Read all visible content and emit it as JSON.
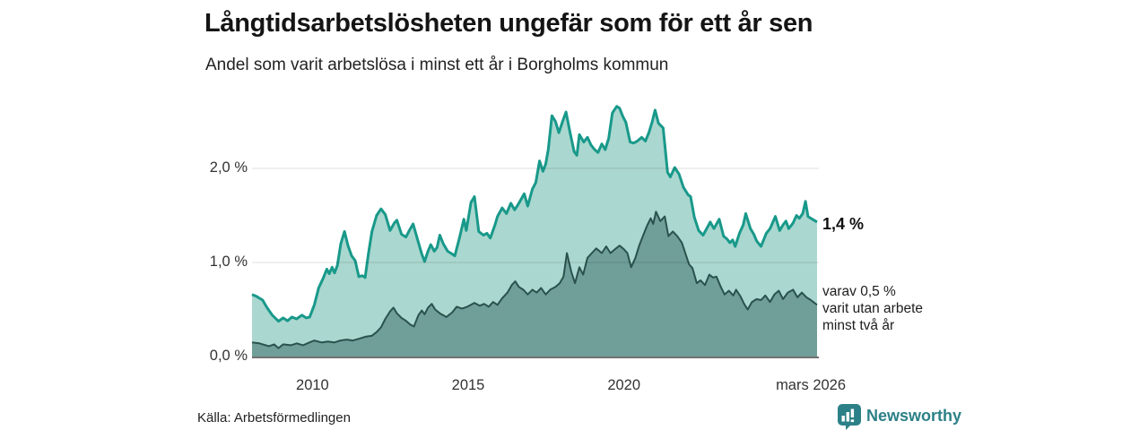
{
  "header": {
    "title": "Långtidsarbetslösheten ungefär som för ett år sen",
    "subtitle": "Andel som varit arbetslösa i minst ett år i Borgholms kommun"
  },
  "colors": {
    "accent_line": "#18998a",
    "accent_fill": "#aad7cf",
    "dark_line": "#2a524d",
    "dark_fill": "#709e99",
    "grid": "rgba(0,0,0,0.10)",
    "axis": "#444444",
    "brand_teal": "#2c8087"
  },
  "chart_data": {
    "type": "area",
    "title": "Långtidsarbetslösheten ungefär som för ett år sen",
    "subtitle": "Andel som varit arbetslösa i minst ett år i Borgholms kommun",
    "x_range": [
      2008.06,
      2026.2
    ],
    "y_range": [
      0,
      2.8
    ],
    "grid": "on",
    "y_ticks": [
      {
        "label": "0,0 %",
        "value": 0
      },
      {
        "label": "1,0 %",
        "value": 1
      },
      {
        "label": "2,0 %",
        "value": 2
      }
    ],
    "x_ticks": [
      {
        "label": "2010",
        "year": 2010
      },
      {
        "label": "2015",
        "year": 2015
      },
      {
        "label": "2020",
        "year": 2020
      },
      {
        "label": "mars 2026",
        "year": 2026.0
      }
    ],
    "series": [
      {
        "name": "Andel arbetslösa minst ett år",
        "latest": "1,4 %",
        "points": [
          [
            2008.06,
            0.66
          ],
          [
            2008.2,
            0.64
          ],
          [
            2008.4,
            0.6
          ],
          [
            2008.54,
            0.52
          ],
          [
            2008.71,
            0.44
          ],
          [
            2008.91,
            0.375
          ],
          [
            2009.06,
            0.41
          ],
          [
            2009.2,
            0.38
          ],
          [
            2009.34,
            0.42
          ],
          [
            2009.49,
            0.4
          ],
          [
            2009.66,
            0.44
          ],
          [
            2009.8,
            0.41
          ],
          [
            2009.91,
            0.42
          ],
          [
            2010.06,
            0.55
          ],
          [
            2010.2,
            0.73
          ],
          [
            2010.34,
            0.83
          ],
          [
            2010.46,
            0.93
          ],
          [
            2010.54,
            0.88
          ],
          [
            2010.63,
            0.95
          ],
          [
            2010.71,
            0.89
          ],
          [
            2010.8,
            0.97
          ],
          [
            2010.91,
            1.2
          ],
          [
            2011.03,
            1.33
          ],
          [
            2011.14,
            1.18
          ],
          [
            2011.26,
            1.07
          ],
          [
            2011.37,
            1.02
          ],
          [
            2011.49,
            0.85
          ],
          [
            2011.6,
            0.86
          ],
          [
            2011.69,
            0.84
          ],
          [
            2011.8,
            1.1
          ],
          [
            2011.91,
            1.33
          ],
          [
            2012.06,
            1.5
          ],
          [
            2012.2,
            1.57
          ],
          [
            2012.34,
            1.51
          ],
          [
            2012.49,
            1.34
          ],
          [
            2012.63,
            1.42
          ],
          [
            2012.71,
            1.45
          ],
          [
            2012.86,
            1.3
          ],
          [
            2013.0,
            1.27
          ],
          [
            2013.11,
            1.34
          ],
          [
            2013.23,
            1.41
          ],
          [
            2013.37,
            1.25
          ],
          [
            2013.51,
            1.09
          ],
          [
            2013.6,
            1.01
          ],
          [
            2013.71,
            1.12
          ],
          [
            2013.8,
            1.19
          ],
          [
            2013.91,
            1.12
          ],
          [
            2014.0,
            1.16
          ],
          [
            2014.09,
            1.29
          ],
          [
            2014.2,
            1.2
          ],
          [
            2014.34,
            1.12
          ],
          [
            2014.49,
            1.09
          ],
          [
            2014.57,
            1.07
          ],
          [
            2014.71,
            1.25
          ],
          [
            2014.86,
            1.46
          ],
          [
            2014.94,
            1.34
          ],
          [
            2015.09,
            1.64
          ],
          [
            2015.2,
            1.7
          ],
          [
            2015.34,
            1.33
          ],
          [
            2015.49,
            1.29
          ],
          [
            2015.6,
            1.31
          ],
          [
            2015.71,
            1.26
          ],
          [
            2015.86,
            1.4
          ],
          [
            2015.94,
            1.49
          ],
          [
            2016.09,
            1.58
          ],
          [
            2016.23,
            1.52
          ],
          [
            2016.37,
            1.63
          ],
          [
            2016.49,
            1.56
          ],
          [
            2016.57,
            1.6
          ],
          [
            2016.66,
            1.65
          ],
          [
            2016.8,
            1.73
          ],
          [
            2016.91,
            1.6
          ],
          [
            2017.06,
            1.78
          ],
          [
            2017.17,
            1.85
          ],
          [
            2017.29,
            2.08
          ],
          [
            2017.4,
            1.97
          ],
          [
            2017.49,
            2.05
          ],
          [
            2017.57,
            2.2
          ],
          [
            2017.69,
            2.56
          ],
          [
            2017.8,
            2.5
          ],
          [
            2017.91,
            2.38
          ],
          [
            2018.03,
            2.5
          ],
          [
            2018.14,
            2.6
          ],
          [
            2018.26,
            2.4
          ],
          [
            2018.4,
            2.18
          ],
          [
            2018.49,
            2.14
          ],
          [
            2018.57,
            2.36
          ],
          [
            2018.71,
            2.28
          ],
          [
            2018.83,
            2.33
          ],
          [
            2018.94,
            2.25
          ],
          [
            2019.06,
            2.2
          ],
          [
            2019.17,
            2.17
          ],
          [
            2019.29,
            2.26
          ],
          [
            2019.4,
            2.2
          ],
          [
            2019.51,
            2.32
          ],
          [
            2019.63,
            2.59
          ],
          [
            2019.77,
            2.66
          ],
          [
            2019.86,
            2.64
          ],
          [
            2019.97,
            2.55
          ],
          [
            2020.06,
            2.49
          ],
          [
            2020.2,
            2.28
          ],
          [
            2020.31,
            2.27
          ],
          [
            2020.43,
            2.29
          ],
          [
            2020.57,
            2.33
          ],
          [
            2020.69,
            2.29
          ],
          [
            2020.8,
            2.38
          ],
          [
            2020.91,
            2.5
          ],
          [
            2021.0,
            2.62
          ],
          [
            2021.11,
            2.48
          ],
          [
            2021.26,
            2.43
          ],
          [
            2021.4,
            1.96
          ],
          [
            2021.49,
            1.91
          ],
          [
            2021.63,
            2.01
          ],
          [
            2021.77,
            1.94
          ],
          [
            2021.91,
            1.8
          ],
          [
            2022.06,
            1.72
          ],
          [
            2022.14,
            1.7
          ],
          [
            2022.26,
            1.48
          ],
          [
            2022.4,
            1.34
          ],
          [
            2022.54,
            1.29
          ],
          [
            2022.69,
            1.38
          ],
          [
            2022.77,
            1.43
          ],
          [
            2022.89,
            1.36
          ],
          [
            2023.06,
            1.46
          ],
          [
            2023.2,
            1.28
          ],
          [
            2023.31,
            1.25
          ],
          [
            2023.4,
            1.21
          ],
          [
            2023.49,
            1.24
          ],
          [
            2023.57,
            1.17
          ],
          [
            2023.71,
            1.31
          ],
          [
            2023.83,
            1.4
          ],
          [
            2023.91,
            1.52
          ],
          [
            2024.06,
            1.36
          ],
          [
            2024.17,
            1.3
          ],
          [
            2024.26,
            1.23
          ],
          [
            2024.4,
            1.17
          ],
          [
            2024.57,
            1.31
          ],
          [
            2024.69,
            1.36
          ],
          [
            2024.86,
            1.49
          ],
          [
            2025.0,
            1.34
          ],
          [
            2025.11,
            1.4
          ],
          [
            2025.2,
            1.44
          ],
          [
            2025.29,
            1.36
          ],
          [
            2025.43,
            1.42
          ],
          [
            2025.54,
            1.5
          ],
          [
            2025.63,
            1.47
          ],
          [
            2025.74,
            1.52
          ],
          [
            2025.83,
            1.65
          ],
          [
            2025.91,
            1.49
          ],
          [
            2026.0,
            1.47
          ],
          [
            2026.2,
            1.43
          ]
        ]
      },
      {
        "name": "varav utan arbete minst två år",
        "latest": "0,5 %",
        "points": [
          [
            2008.06,
            0.15
          ],
          [
            2008.3,
            0.14
          ],
          [
            2008.6,
            0.11
          ],
          [
            2008.77,
            0.13
          ],
          [
            2008.91,
            0.09
          ],
          [
            2009.06,
            0.13
          ],
          [
            2009.3,
            0.12
          ],
          [
            2009.5,
            0.14
          ],
          [
            2009.7,
            0.12
          ],
          [
            2009.9,
            0.15
          ],
          [
            2010.06,
            0.17
          ],
          [
            2010.3,
            0.15
          ],
          [
            2010.5,
            0.16
          ],
          [
            2010.7,
            0.15
          ],
          [
            2010.9,
            0.17
          ],
          [
            2011.1,
            0.18
          ],
          [
            2011.3,
            0.17
          ],
          [
            2011.5,
            0.19
          ],
          [
            2011.7,
            0.21
          ],
          [
            2011.9,
            0.22
          ],
          [
            2012.06,
            0.26
          ],
          [
            2012.2,
            0.31
          ],
          [
            2012.34,
            0.4
          ],
          [
            2012.49,
            0.48
          ],
          [
            2012.6,
            0.52
          ],
          [
            2012.71,
            0.46
          ],
          [
            2012.86,
            0.41
          ],
          [
            2013.0,
            0.38
          ],
          [
            2013.14,
            0.34
          ],
          [
            2013.26,
            0.32
          ],
          [
            2013.4,
            0.44
          ],
          [
            2013.51,
            0.49
          ],
          [
            2013.6,
            0.45
          ],
          [
            2013.71,
            0.52
          ],
          [
            2013.83,
            0.56
          ],
          [
            2013.94,
            0.5
          ],
          [
            2014.09,
            0.46
          ],
          [
            2014.3,
            0.42
          ],
          [
            2014.49,
            0.47
          ],
          [
            2014.63,
            0.53
          ],
          [
            2014.8,
            0.51
          ],
          [
            2014.97,
            0.53
          ],
          [
            2015.2,
            0.57
          ],
          [
            2015.37,
            0.54
          ],
          [
            2015.51,
            0.56
          ],
          [
            2015.66,
            0.53
          ],
          [
            2015.8,
            0.58
          ],
          [
            2015.94,
            0.55
          ],
          [
            2016.09,
            0.62
          ],
          [
            2016.26,
            0.68
          ],
          [
            2016.4,
            0.76
          ],
          [
            2016.51,
            0.8
          ],
          [
            2016.63,
            0.74
          ],
          [
            2016.77,
            0.71
          ],
          [
            2016.91,
            0.66
          ],
          [
            2017.06,
            0.71
          ],
          [
            2017.2,
            0.68
          ],
          [
            2017.34,
            0.73
          ],
          [
            2017.49,
            0.66
          ],
          [
            2017.63,
            0.71
          ],
          [
            2017.8,
            0.74
          ],
          [
            2017.94,
            0.78
          ],
          [
            2018.06,
            0.85
          ],
          [
            2018.17,
            1.1
          ],
          [
            2018.31,
            0.9
          ],
          [
            2018.43,
            0.78
          ],
          [
            2018.57,
            0.95
          ],
          [
            2018.69,
            0.87
          ],
          [
            2018.83,
            1.05
          ],
          [
            2018.97,
            1.1
          ],
          [
            2019.11,
            1.15
          ],
          [
            2019.29,
            1.1
          ],
          [
            2019.43,
            1.17
          ],
          [
            2019.57,
            1.1
          ],
          [
            2019.71,
            1.14
          ],
          [
            2019.86,
            1.18
          ],
          [
            2020.0,
            1.14
          ],
          [
            2020.11,
            1.1
          ],
          [
            2020.23,
            0.95
          ],
          [
            2020.37,
            1.05
          ],
          [
            2020.49,
            1.18
          ],
          [
            2020.63,
            1.3
          ],
          [
            2020.74,
            1.39
          ],
          [
            2020.86,
            1.47
          ],
          [
            2020.94,
            1.41
          ],
          [
            2021.03,
            1.54
          ],
          [
            2021.17,
            1.44
          ],
          [
            2021.31,
            1.49
          ],
          [
            2021.43,
            1.28
          ],
          [
            2021.57,
            1.33
          ],
          [
            2021.71,
            1.28
          ],
          [
            2021.86,
            1.21
          ],
          [
            2022.0,
            1.07
          ],
          [
            2022.09,
            0.98
          ],
          [
            2022.2,
            0.94
          ],
          [
            2022.34,
            0.78
          ],
          [
            2022.46,
            0.81
          ],
          [
            2022.6,
            0.76
          ],
          [
            2022.74,
            0.87
          ],
          [
            2022.86,
            0.84
          ],
          [
            2022.97,
            0.85
          ],
          [
            2023.11,
            0.74
          ],
          [
            2023.23,
            0.66
          ],
          [
            2023.37,
            0.7
          ],
          [
            2023.51,
            0.65
          ],
          [
            2023.6,
            0.71
          ],
          [
            2023.74,
            0.64
          ],
          [
            2023.86,
            0.56
          ],
          [
            2023.97,
            0.5
          ],
          [
            2024.11,
            0.58
          ],
          [
            2024.26,
            0.61
          ],
          [
            2024.4,
            0.6
          ],
          [
            2024.54,
            0.65
          ],
          [
            2024.69,
            0.58
          ],
          [
            2024.83,
            0.66
          ],
          [
            2024.97,
            0.7
          ],
          [
            2025.11,
            0.61
          ],
          [
            2025.26,
            0.68
          ],
          [
            2025.43,
            0.71
          ],
          [
            2025.57,
            0.63
          ],
          [
            2025.71,
            0.68
          ],
          [
            2025.86,
            0.63
          ],
          [
            2026.0,
            0.6
          ],
          [
            2026.2,
            0.55
          ]
        ]
      }
    ],
    "annotations": {
      "latest_total": "1,4 %",
      "sub_lines": [
        "varav 0,5 %",
        "varit utan arbete",
        "minst två år"
      ]
    }
  },
  "footer": {
    "source": "Källa: Arbetsförmedlingen",
    "brand": "Newsworthy"
  }
}
